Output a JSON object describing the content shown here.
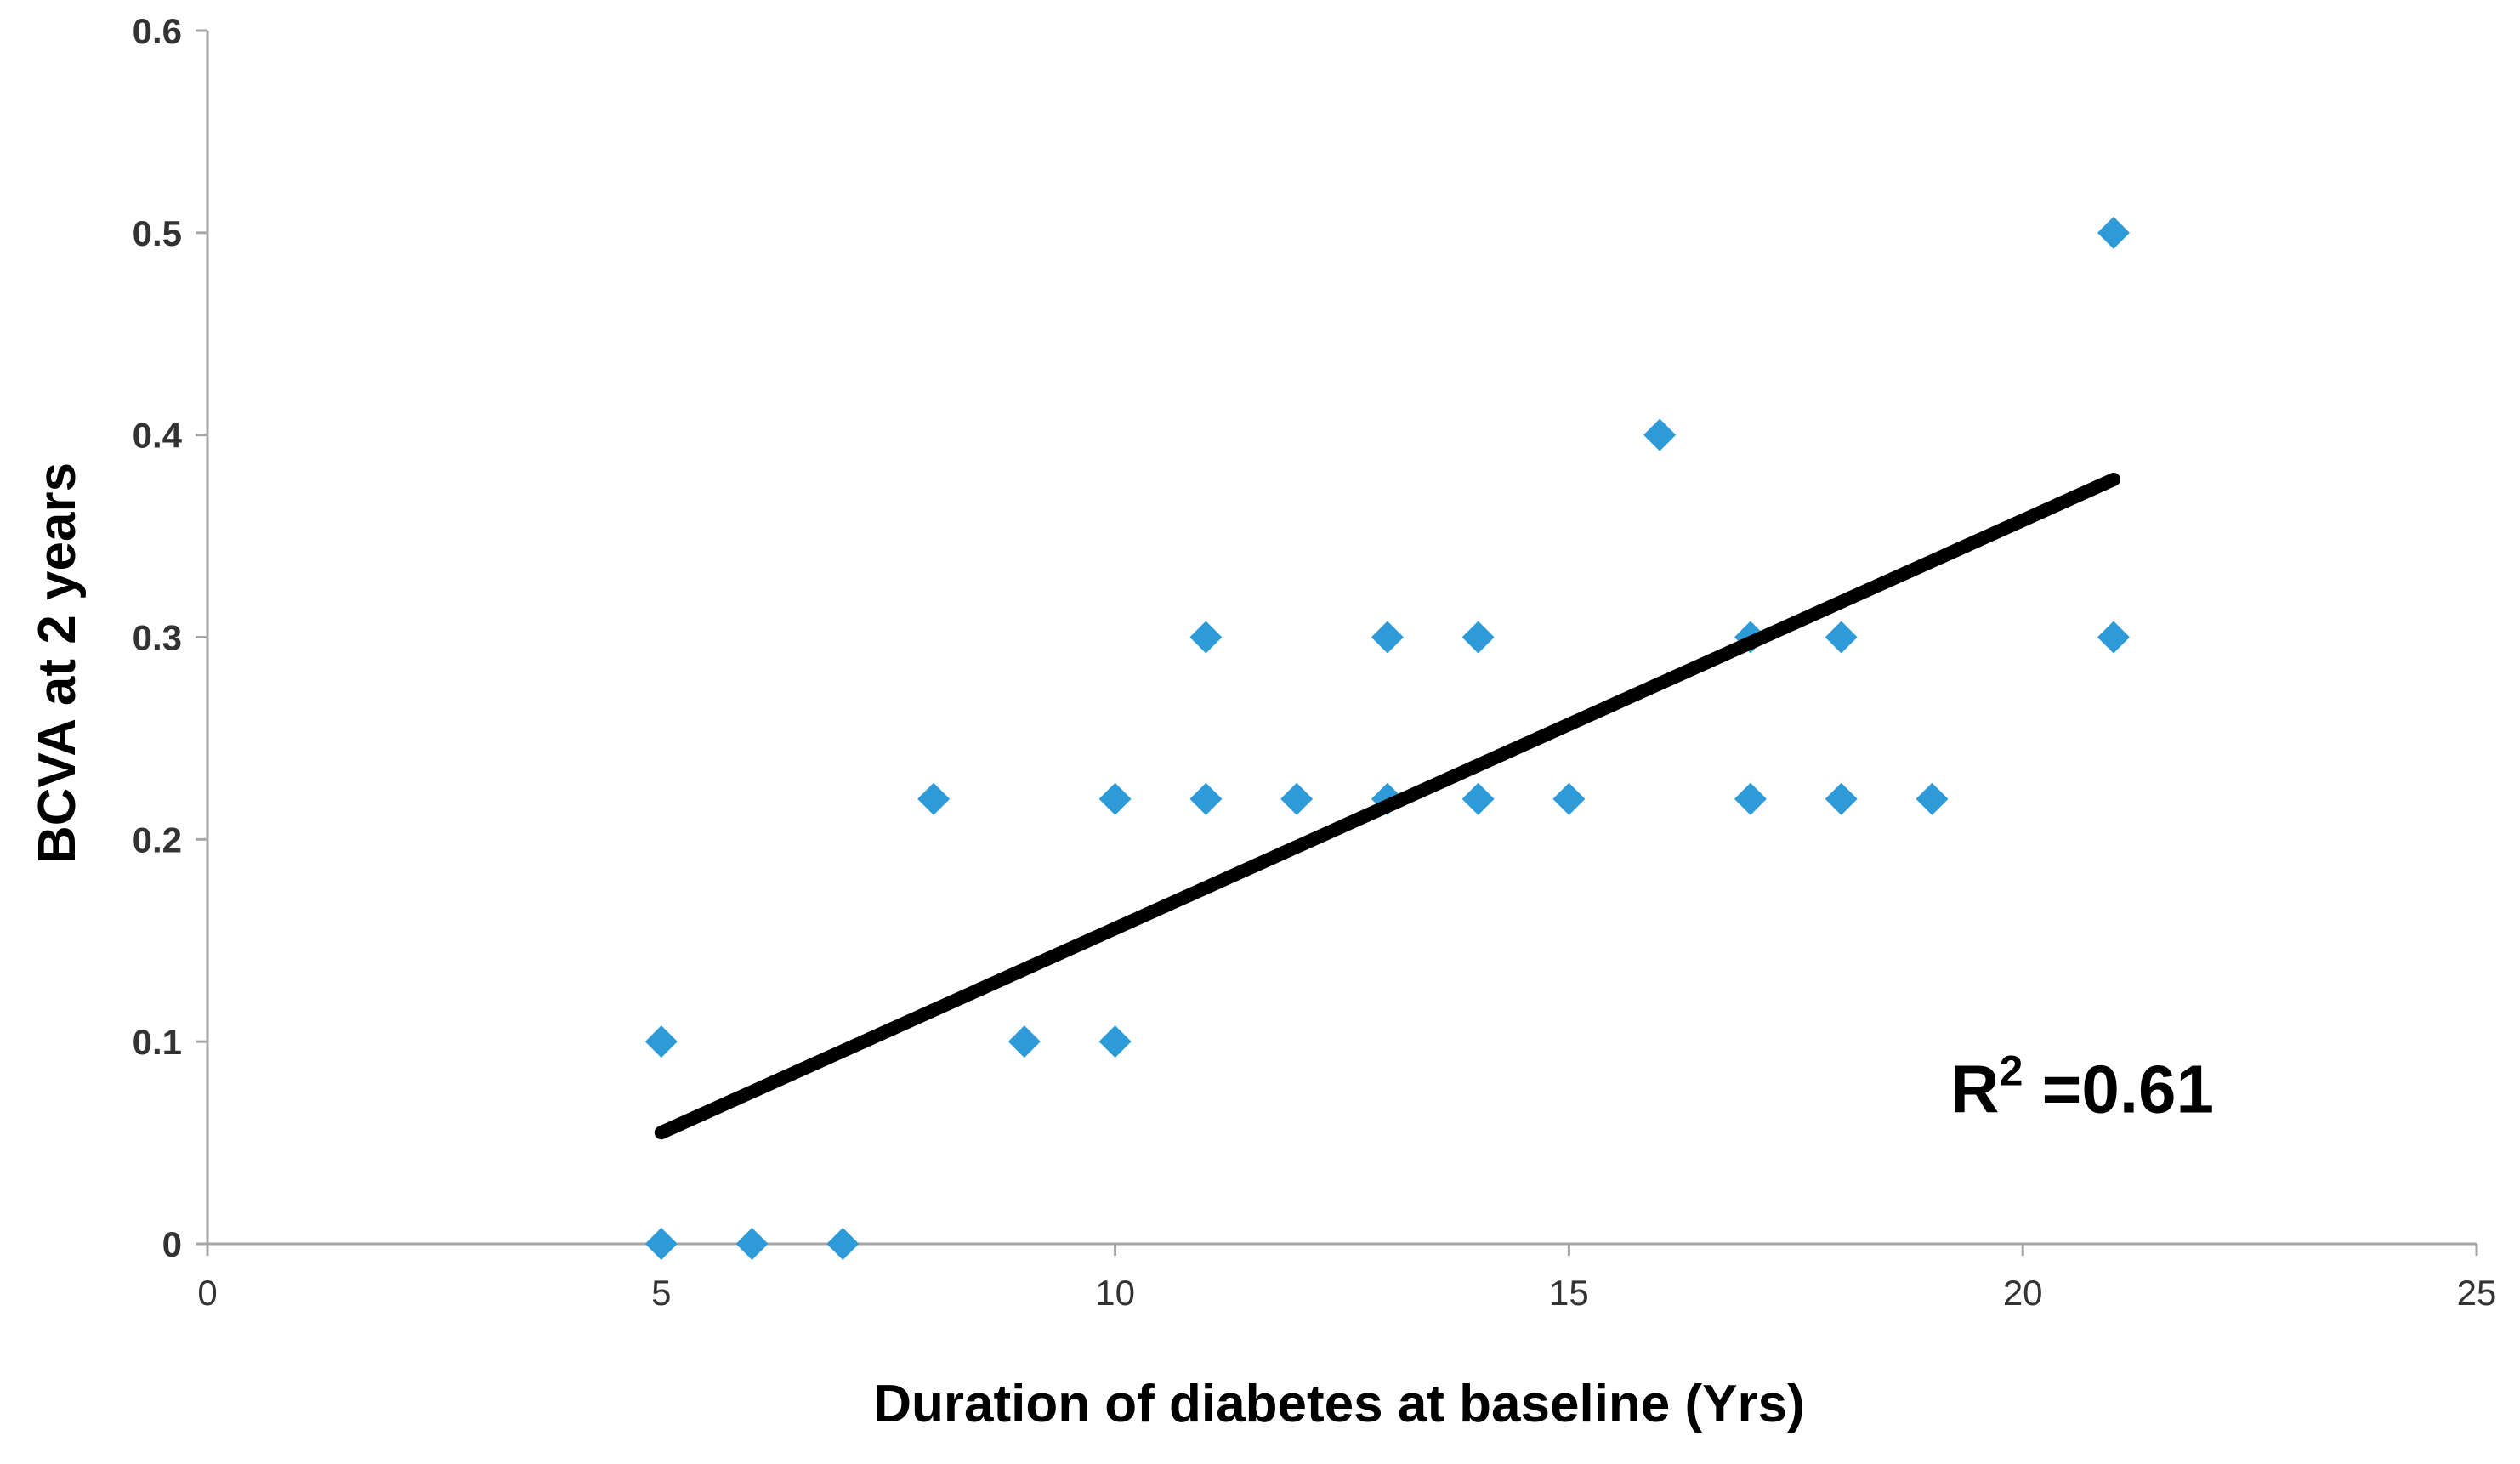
{
  "chart_data": {
    "type": "scatter",
    "title": "",
    "xlabel": "Duration of diabetes at baseline (Yrs)",
    "ylabel": "BCVA at 2 years",
    "xlim": [
      0,
      25
    ],
    "ylim": [
      0,
      0.6
    ],
    "x_ticks": [
      0,
      5,
      10,
      15,
      20,
      25
    ],
    "x_tick_labels": [
      "0",
      "5",
      "10",
      "15",
      "20",
      "25"
    ],
    "y_ticks": [
      0,
      0.1,
      0.2,
      0.3,
      0.4,
      0.5,
      0.6
    ],
    "y_tick_labels": [
      "0",
      "0.1",
      "0.2",
      "0.3",
      "0.4",
      "0.5",
      "0.6"
    ],
    "grid": false,
    "legend": "none",
    "marker_color": "#2E9BD8",
    "trendline_color": "#000000",
    "series": [
      {
        "name": "BCVA",
        "points": [
          {
            "x": 5,
            "y": 0.1
          },
          {
            "x": 5,
            "y": 0.0
          },
          {
            "x": 6,
            "y": 0.0
          },
          {
            "x": 7,
            "y": 0.0
          },
          {
            "x": 8,
            "y": 0.22
          },
          {
            "x": 9,
            "y": 0.1
          },
          {
            "x": 10,
            "y": 0.22
          },
          {
            "x": 10,
            "y": 0.1
          },
          {
            "x": 11,
            "y": 0.3
          },
          {
            "x": 11,
            "y": 0.22
          },
          {
            "x": 12,
            "y": 0.22
          },
          {
            "x": 13,
            "y": 0.3
          },
          {
            "x": 13,
            "y": 0.22
          },
          {
            "x": 14,
            "y": 0.3
          },
          {
            "x": 14,
            "y": 0.22
          },
          {
            "x": 15,
            "y": 0.22
          },
          {
            "x": 16,
            "y": 0.4
          },
          {
            "x": 17,
            "y": 0.3
          },
          {
            "x": 17,
            "y": 0.22
          },
          {
            "x": 18,
            "y": 0.3
          },
          {
            "x": 18,
            "y": 0.22
          },
          {
            "x": 19,
            "y": 0.22
          },
          {
            "x": 21,
            "y": 0.5
          },
          {
            "x": 21,
            "y": 0.3
          }
        ]
      }
    ],
    "trendline": {
      "x": [
        5,
        21
      ],
      "y": [
        0.055,
        0.378
      ]
    },
    "annotation": {
      "text_main": "R",
      "text_sup": "2",
      "text_rest": " =0.61",
      "x": 19.2,
      "y": 0.065
    }
  }
}
